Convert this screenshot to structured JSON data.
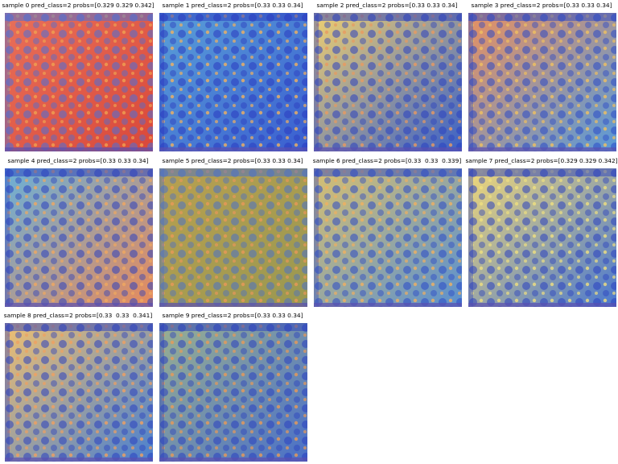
{
  "panels": [
    {
      "title": "sample 0 pred_class=2 probs=[0.329 0.329 0.342]"
    },
    {
      "title": "sample 1 pred_class=2 probs=[0.33 0.33 0.34]"
    },
    {
      "title": "sample 2 pred_class=2 probs=[0.33 0.33 0.34]"
    },
    {
      "title": "sample 3 pred_class=2 probs=[0.33 0.33 0.34]"
    },
    {
      "title": "sample 4 pred_class=2 probs=[0.33 0.33 0.34]"
    },
    {
      "title": "sample 5 pred_class=2 probs=[0.33 0.33 0.34]"
    },
    {
      "title": "sample 6 pred_class=2 probs=[0.33  0.33  0.339]"
    },
    {
      "title": "sample 7 pred_class=2 probs=[0.329 0.329 0.342]"
    },
    {
      "title": "sample 8 pred_class=2 probs=[0.33  0.33  0.341]"
    },
    {
      "title": "sample 9 pred_class=2 probs=[0.33 0.33 0.34]"
    }
  ]
}
